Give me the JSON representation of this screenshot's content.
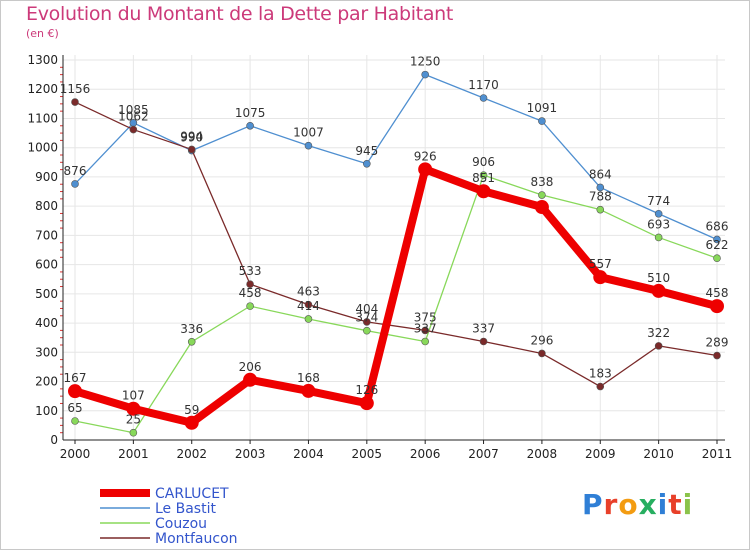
{
  "colors": {
    "title": "#cc3a7a",
    "frame": "#c8c8c8",
    "grid": "#e6e6e6",
    "axis": "#222222"
  },
  "chart_data": {
    "type": "line",
    "title": "Evolution du Montant de la Dette par Habitant",
    "subtitle": "(en €)",
    "xlabel": "",
    "ylabel": "",
    "x": [
      "2000",
      "2001",
      "2002",
      "2003",
      "2004",
      "2005",
      "2006",
      "2007",
      "2008",
      "2009",
      "2010",
      "2011"
    ],
    "ylim": [
      0,
      1300
    ],
    "yticks": [
      0,
      100,
      200,
      300,
      400,
      500,
      600,
      700,
      800,
      900,
      1000,
      1100,
      1200,
      1300
    ],
    "grid": true,
    "legend_position": "bottom-left",
    "series": [
      {
        "name": "CARLUCET",
        "color": "#ee0000",
        "emphasis": true,
        "values": [
          167,
          107,
          59,
          206,
          168,
          126,
          926,
          851,
          797,
          557,
          510,
          458
        ],
        "labels": [
          "167",
          "107",
          "59",
          "206",
          "168",
          "126",
          "926",
          "851",
          "",
          "557",
          "510",
          "458"
        ]
      },
      {
        "name": "Le Bastit",
        "color": "#4f8fd0",
        "emphasis": false,
        "values": [
          876,
          1085,
          990,
          1075,
          1007,
          945,
          1250,
          1170,
          1091,
          864,
          774,
          686
        ],
        "labels": [
          "876",
          "1085",
          "990",
          "1075",
          "1007",
          "945",
          "1250",
          "1170",
          "1091",
          "864",
          "774",
          "686"
        ]
      },
      {
        "name": "Couzou",
        "color": "#88d85a",
        "emphasis": false,
        "values": [
          65,
          25,
          336,
          458,
          414,
          374,
          337,
          906,
          838,
          788,
          693,
          622
        ],
        "labels": [
          "65",
          "25",
          "336",
          "458",
          "414",
          "374",
          "337",
          "906",
          "838",
          "788",
          "693",
          "622"
        ]
      },
      {
        "name": "Montfaucon",
        "color": "#7a2a2a",
        "emphasis": false,
        "values": [
          1156,
          1062,
          994,
          533,
          463,
          404,
          375,
          337,
          296,
          183,
          322,
          289
        ],
        "labels": [
          "1156",
          "1062",
          "994",
          "533",
          "463",
          "404",
          "375",
          "337",
          "296",
          "183",
          "322",
          "289"
        ]
      }
    ]
  },
  "logo": {
    "letters": [
      {
        "char": "P",
        "color": "#2f7fd6"
      },
      {
        "char": "r",
        "color": "#e8402a"
      },
      {
        "char": "o",
        "color": "#f39c12"
      },
      {
        "char": "x",
        "color": "#27ae60"
      },
      {
        "char": "i",
        "color": "#2f7fd6"
      },
      {
        "char": "t",
        "color": "#e8402a"
      },
      {
        "char": "i",
        "color": "#8bc34a"
      }
    ]
  }
}
